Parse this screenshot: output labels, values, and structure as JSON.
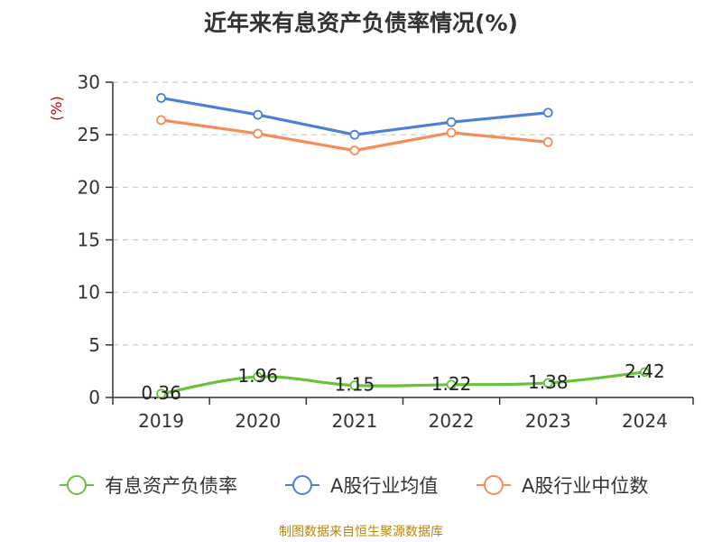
{
  "chart_data": {
    "type": "line",
    "title": "近年来有息资产负债率情况(%)",
    "ylabel": "(%)",
    "categories": [
      "2019",
      "2020",
      "2021",
      "2022",
      "2023",
      "2024"
    ],
    "ylim": [
      0,
      30
    ],
    "yticks": [
      "0",
      "5",
      "10",
      "15",
      "20",
      "25",
      "30"
    ],
    "grid": true,
    "legend_position": "bottom",
    "series": [
      {
        "name": "有息资产负债率",
        "color": "#67c23a",
        "values": [
          0.36,
          1.96,
          1.15,
          1.22,
          1.38,
          2.42
        ],
        "labels": [
          "0.36",
          "1.96",
          "1.15",
          "1.22",
          "1.38",
          "2.42"
        ],
        "smooth": true
      },
      {
        "name": "A股行业均值",
        "color": "#4e7fd6",
        "values": [
          28.5,
          26.9,
          25.0,
          26.2,
          27.1,
          null
        ]
      },
      {
        "name": "A股行业中位数",
        "color": "#f58c5b",
        "values": [
          26.4,
          25.1,
          23.5,
          25.2,
          24.3,
          null
        ]
      }
    ]
  },
  "source": "制图数据来自恒生聚源数据库"
}
